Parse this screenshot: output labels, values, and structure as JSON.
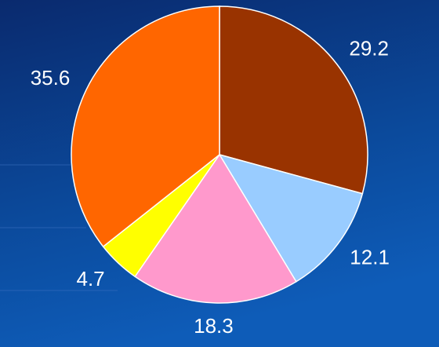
{
  "chart_data": {
    "type": "pie",
    "values": [
      29.2,
      12.1,
      18.3,
      4.7,
      35.6
    ],
    "colors": [
      "#993300",
      "#99ccff",
      "#ff99cc",
      "#ffff00",
      "#ff6600"
    ]
  }
}
